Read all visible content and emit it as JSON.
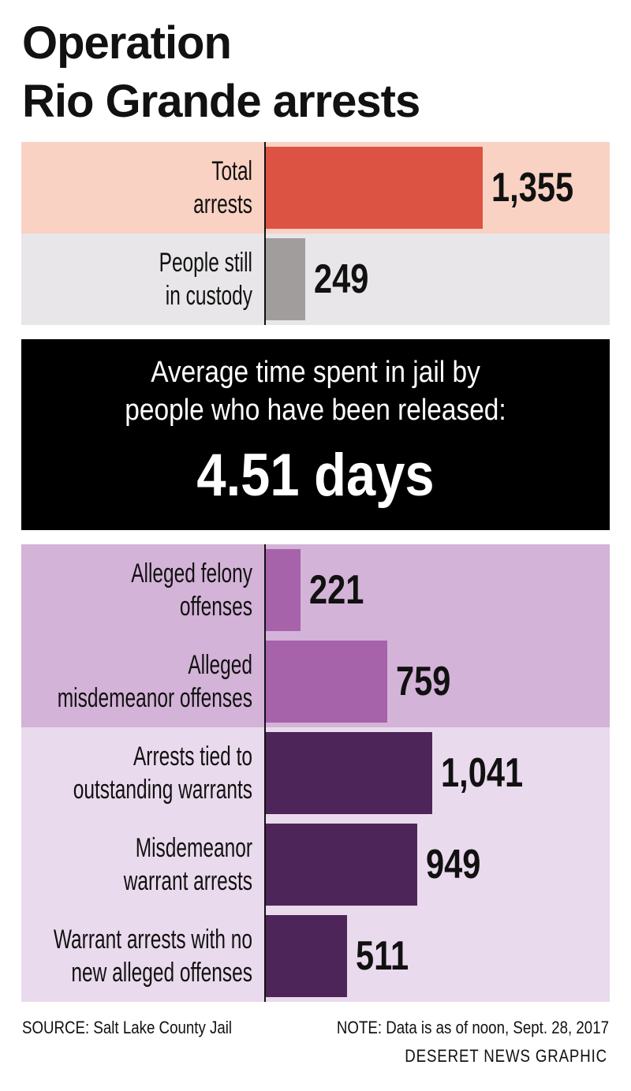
{
  "title": "Operation\nRio Grande arrests",
  "chart_data": [
    {
      "type": "bar",
      "orientation": "horizontal",
      "categories": [
        "Total\narrests",
        "People still\nin custody"
      ],
      "values": [
        1355,
        249
      ],
      "value_labels": [
        "1,355",
        "249"
      ],
      "colors": [
        "#dc5343",
        "#a19d9d"
      ],
      "xlim": [
        0,
        2150
      ]
    },
    {
      "type": "bar",
      "orientation": "horizontal",
      "categories": [
        "Alleged felony\noffenses",
        "Alleged\nmisdemeanor offenses",
        "Arrests tied to\noutstanding warrants",
        "Misdemeanor\nwarrant arrests",
        "Warrant arrests with no\nnew alleged offenses"
      ],
      "values": [
        221,
        759,
        1041,
        949,
        511
      ],
      "value_labels": [
        "221",
        "759",
        "1,041",
        "949",
        "511"
      ],
      "colors": [
        "#a663aa",
        "#a663aa",
        "#4e2558",
        "#4e2558",
        "#4e2558"
      ],
      "xlim": [
        0,
        2150
      ]
    }
  ],
  "callout": {
    "text": "Average time spent in jail by\npeople who have been released:",
    "value": "4.51 days"
  },
  "source": "SOURCE: Salt Lake County Jail",
  "note": "NOTE: Data is as of noon, Sept. 28, 2017",
  "credit": "DESERET NEWS GRAPHIC"
}
